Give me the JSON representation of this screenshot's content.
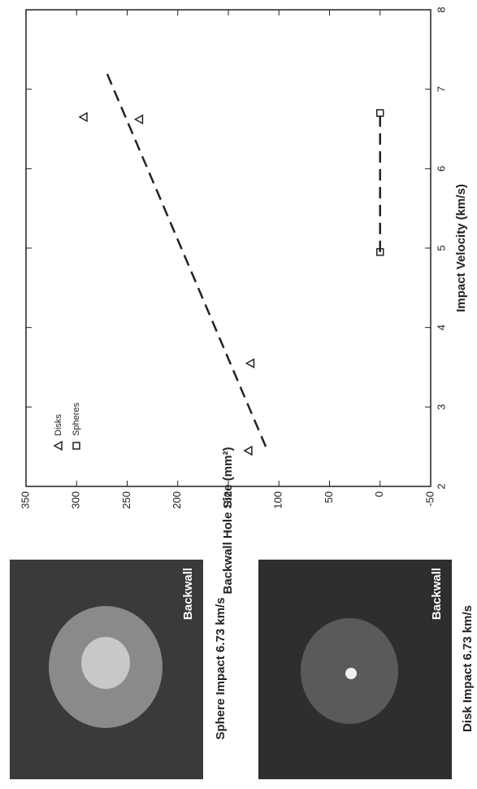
{
  "chart_data": {
    "type": "scatter",
    "x_label": "Impact Velocity (km/s)",
    "y_label": "Backwall Hole Size (mm²)",
    "xlim": [
      2,
      8
    ],
    "xticks": [
      2,
      3,
      4,
      5,
      6,
      7,
      8
    ],
    "ylim": [
      -50,
      350
    ],
    "yticks": [
      -50,
      0,
      50,
      100,
      150,
      200,
      250,
      300,
      350
    ],
    "legend": "top-left",
    "series": [
      {
        "name": "Disks",
        "marker": "triangle",
        "color": "#222",
        "x": [
          2.45,
          3.55,
          6.62,
          6.65
        ],
        "values": [
          130,
          128,
          238,
          293
        ]
      },
      {
        "name": "Spheres",
        "marker": "square",
        "color": "#222",
        "x": [
          4.95,
          6.7
        ],
        "values": [
          0,
          0
        ]
      }
    ],
    "trend_lines": [
      {
        "x": [
          2.5,
          7.2
        ],
        "values": [
          113,
          270
        ]
      },
      {
        "x": [
          4.95,
          6.7
        ],
        "values": [
          0,
          0
        ]
      }
    ]
  },
  "photos": [
    {
      "label": "Backwall",
      "caption": "Sphere Impact 6.73 km/s"
    },
    {
      "label": "Backwall",
      "caption": "Disk Impact 6.73 km/s"
    }
  ]
}
